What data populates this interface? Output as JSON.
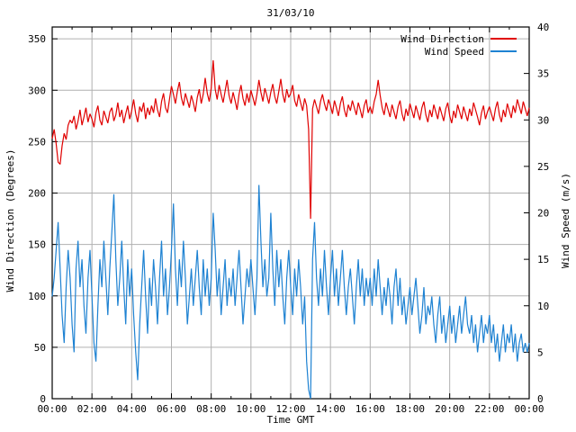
{
  "title": "31/03/10",
  "colors": {
    "wind_direction": "#e00000",
    "wind_speed": "#1e82d2",
    "grid": "#b0b0b0",
    "axis": "#000000",
    "background": "#ffffff"
  },
  "legend": {
    "position": "top-right-inside",
    "entries": [
      {
        "label": "Wind Direction",
        "color": "#e00000"
      },
      {
        "label": "Wind Speed",
        "color": "#1e82d2"
      }
    ]
  },
  "axes": {
    "x": {
      "label": "Time GMT",
      "range_hours": [
        0,
        24
      ],
      "major_tick_hours": [
        0,
        2,
        4,
        6,
        8,
        10,
        12,
        14,
        16,
        18,
        20,
        22,
        24
      ],
      "minor_tick_hours": [
        1,
        3,
        5,
        7,
        9,
        11,
        13,
        15,
        17,
        19,
        21,
        23
      ],
      "tick_labels": [
        "00:00",
        "02:00",
        "04:00",
        "06:00",
        "08:00",
        "10:00",
        "12:00",
        "14:00",
        "16:00",
        "18:00",
        "20:00",
        "22:00",
        "00:00"
      ],
      "grid": true
    },
    "y_left": {
      "label": "Wind Direction (Degrees)",
      "range": [
        0,
        361.5
      ],
      "tick_values": [
        0,
        50,
        100,
        150,
        200,
        250,
        300,
        350
      ],
      "tick_labels": [
        "0",
        "50",
        "100",
        "150",
        "200",
        "250",
        "300",
        "350"
      ],
      "grid": true
    },
    "y_right": {
      "label": "Wind Speed (m/s)",
      "range": [
        0,
        40
      ],
      "tick_values": [
        0,
        5,
        10,
        15,
        20,
        25,
        30,
        35,
        40
      ],
      "tick_labels": [
        "0",
        "5",
        "10",
        "15",
        "20",
        "25",
        "30",
        "35",
        "40"
      ],
      "grid": false
    }
  },
  "chart_data": {
    "type": "line",
    "title": "31/03/10",
    "xlabel": "Time GMT",
    "x_unit": "hours",
    "x_start": 0,
    "x_step": 0.1,
    "legend_position": "top-right-inside",
    "grid": true,
    "series": [
      {
        "name": "Wind Direction",
        "axis": "left",
        "units": "degrees",
        "ylim": [
          0,
          361.5
        ],
        "color": "#e00000",
        "values": [
          253,
          262,
          248,
          230,
          228,
          246,
          258,
          252,
          266,
          271,
          268,
          275,
          262,
          270,
          281,
          266,
          274,
          283,
          269,
          277,
          272,
          264,
          278,
          285,
          271,
          266,
          280,
          274,
          268,
          279,
          283,
          270,
          276,
          288,
          274,
          281,
          268,
          277,
          285,
          272,
          280,
          291,
          277,
          269,
          284,
          279,
          288,
          272,
          283,
          276,
          285,
          278,
          292,
          281,
          274,
          289,
          297,
          283,
          278,
          291,
          304,
          296,
          287,
          299,
          308,
          293,
          285,
          297,
          290,
          283,
          295,
          288,
          279,
          293,
          301,
          287,
          296,
          312,
          297,
          289,
          302,
          329,
          301,
          291,
          305,
          296,
          288,
          299,
          310,
          295,
          287,
          298,
          290,
          281,
          296,
          305,
          292,
          285,
          297,
          288,
          300,
          293,
          285,
          296,
          310,
          298,
          289,
          302,
          295,
          287,
          298,
          306,
          294,
          287,
          299,
          311,
          296,
          288,
          301,
          293,
          297,
          305,
          290,
          284,
          296,
          288,
          280,
          292,
          285,
          262,
          175,
          282,
          291,
          284,
          277,
          289,
          296,
          287,
          280,
          291,
          285,
          277,
          290,
          283,
          275,
          287,
          294,
          281,
          274,
          286,
          280,
          290,
          283,
          276,
          288,
          281,
          273,
          285,
          291,
          278,
          284,
          277,
          289,
          296,
          310,
          295,
          283,
          276,
          288,
          281,
          274,
          286,
          279,
          272,
          284,
          290,
          277,
          270,
          282,
          275,
          287,
          280,
          273,
          285,
          278,
          271,
          283,
          289,
          276,
          269,
          281,
          274,
          286,
          279,
          272,
          284,
          277,
          270,
          282,
          288,
          275,
          268,
          280,
          273,
          286,
          279,
          272,
          284,
          277,
          270,
          282,
          275,
          288,
          281,
          274,
          266,
          278,
          285,
          272,
          279,
          284,
          277,
          270,
          282,
          289,
          276,
          269,
          281,
          274,
          287,
          280,
          273,
          285,
          278,
          291,
          284,
          277,
          289,
          282,
          275,
          283
        ]
      },
      {
        "name": "Wind Speed",
        "axis": "right",
        "units": "m/s",
        "ylim": [
          0,
          40
        ],
        "color": "#1e82d2",
        "values": [
          11,
          13,
          16,
          19,
          14,
          9,
          6,
          12,
          16,
          13,
          8,
          5,
          14,
          17,
          12,
          15,
          10,
          7,
          13,
          16,
          11,
          6,
          4,
          10,
          15,
          12,
          17,
          13,
          9,
          14,
          18,
          22,
          15,
          10,
          13,
          17,
          12,
          8,
          15,
          11,
          14,
          9,
          5,
          2,
          8,
          12,
          16,
          11,
          7,
          13,
          10,
          15,
          12,
          8,
          13,
          17,
          11,
          14,
          9,
          12,
          16,
          21,
          14,
          10,
          15,
          12,
          17,
          13,
          8,
          11,
          14,
          10,
          13,
          16,
          12,
          9,
          15,
          11,
          14,
          10,
          13,
          20,
          16,
          11,
          14,
          9,
          12,
          15,
          10,
          13,
          11,
          14,
          10,
          13,
          16,
          12,
          8,
          11,
          14,
          12,
          15,
          12,
          9,
          13,
          23,
          17,
          12,
          15,
          11,
          13,
          20,
          14,
          10,
          16,
          12,
          15,
          11,
          8,
          13,
          16,
          12,
          9,
          14,
          11,
          15,
          12,
          8,
          11,
          4,
          1,
          0,
          15,
          19,
          13,
          10,
          14,
          11,
          16,
          12,
          9,
          13,
          16,
          11,
          14,
          10,
          13,
          16,
          12,
          9,
          12,
          14,
          11,
          8,
          12,
          15,
          11,
          14,
          10,
          13,
          11,
          13,
          10,
          14,
          11,
          15,
          12,
          9,
          12,
          10,
          13,
          11,
          8,
          12,
          14,
          10,
          13,
          9,
          11,
          8,
          10,
          12,
          9,
          11,
          13,
          10,
          7,
          9,
          12,
          8,
          10,
          9,
          11,
          8,
          6,
          9,
          11,
          7,
          9,
          6,
          8,
          10,
          7,
          9,
          6,
          8,
          10,
          7,
          9,
          11,
          8,
          7,
          9,
          6,
          8,
          5,
          7,
          9,
          6,
          8,
          7,
          9,
          6,
          8,
          5,
          7,
          4,
          6,
          8,
          5,
          7,
          6,
          8,
          5,
          7,
          4,
          6,
          7,
          5,
          6,
          5,
          6
        ]
      }
    ]
  }
}
